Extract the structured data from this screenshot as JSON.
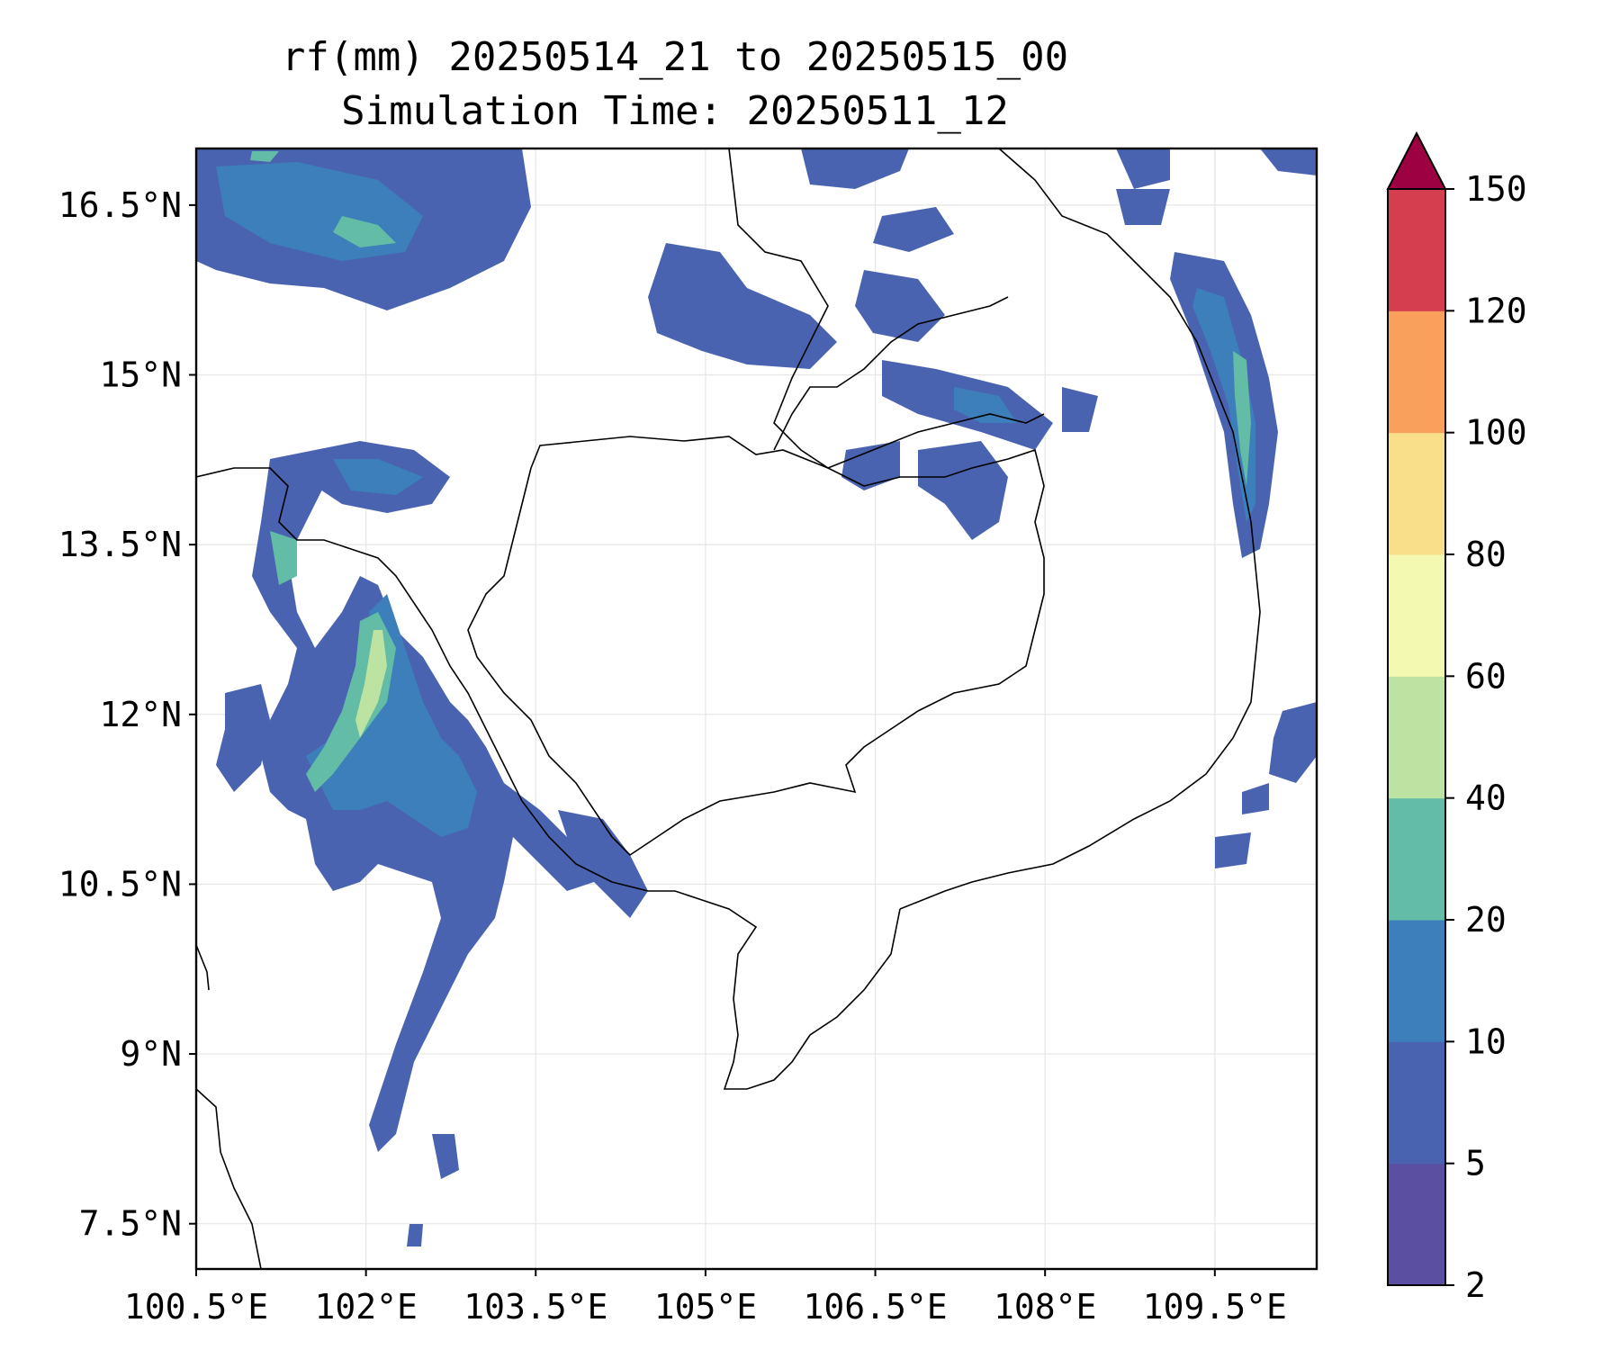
{
  "title": {
    "line1": "rf(mm) 20250514_21 to 20250515_00",
    "line2": "Simulation Time: 20250511_12"
  },
  "map": {
    "x_ticks": [
      "100.5°E",
      "102°E",
      "103.5°E",
      "105°E",
      "106.5°E",
      "108°E",
      "109.5°E"
    ],
    "y_ticks": [
      "16.5°N",
      "15°N",
      "13.5°N",
      "12°N",
      "10.5°N",
      "9°N",
      "7.5°N"
    ],
    "grid": true,
    "extent": {
      "lon": [
        100.5,
        110.4
      ],
      "lat": [
        7.1,
        17.0
      ]
    }
  },
  "colorbar": {
    "levels": [
      "2",
      "5",
      "10",
      "20",
      "40",
      "60",
      "80",
      "100",
      "120",
      "150"
    ],
    "colors": [
      "#5a4fa0",
      "#4a63b0",
      "#3d7fbb",
      "#63bca6",
      "#bde3a2",
      "#f3f9b0",
      "#fadf8b",
      "#f9a05b",
      "#d53e4f",
      "#9e0142"
    ],
    "extend": "max"
  }
}
